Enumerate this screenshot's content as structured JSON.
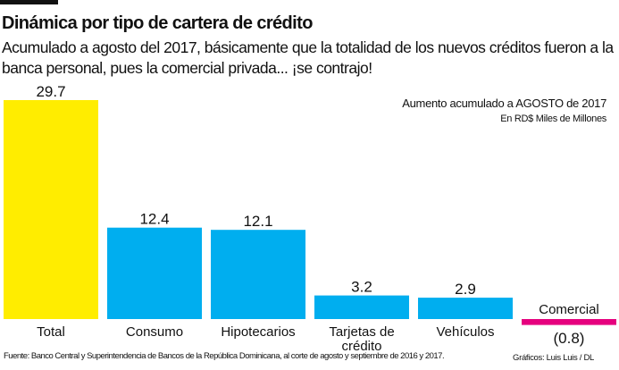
{
  "header": {
    "title": "Dinámica por tipo de cartera de crédito",
    "subtitle": "Acumulado a agosto del 2017, básicamente que la totalidad de los nuevos créditos fueron a la banca personal, pues la comercial privada... ¡se contrajo!"
  },
  "footer": {
    "source": "Fuente: Banco Central y Superintendencia de Bancos de la República Dominicana, al corte de agosto y septiembre de 2016 y 2017.",
    "credit": "Gráficos: Luis Luis / DL"
  },
  "chart_data": {
    "type": "bar",
    "title": "Aumento acumulado a AGOSTO de 2017",
    "subtitle": "En RD$ Miles de Millones",
    "categories": [
      "Total",
      "Consumo",
      "Hipotecarios",
      "Tarjetas de crédito",
      "Vehículos",
      "Comercial"
    ],
    "values": [
      29.7,
      12.4,
      12.1,
      3.2,
      2.9,
      -0.8
    ],
    "value_labels": [
      "29.7",
      "12.4",
      "12.1",
      "3.2",
      "2.9",
      "(0.8)"
    ],
    "colors": [
      "#ffed00",
      "#00aeef",
      "#00aeef",
      "#00aeef",
      "#00aeef",
      "#e6007e"
    ],
    "xlabel": "",
    "ylabel": "",
    "ylim": [
      -0.8,
      29.7
    ],
    "grid": false
  }
}
